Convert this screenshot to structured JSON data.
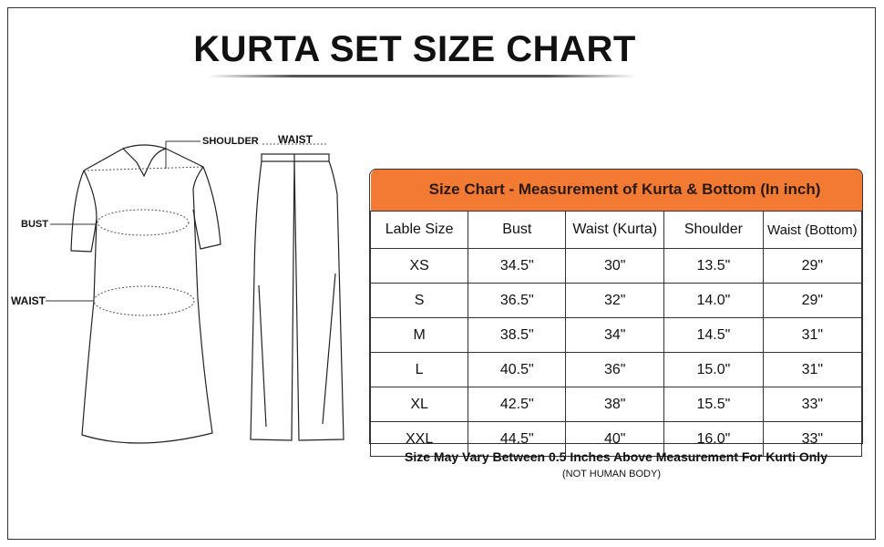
{
  "title": "KURTA SET SIZE CHART",
  "diagram": {
    "kurta_labels": {
      "shoulder": "SHOULDER",
      "bust": "BUST",
      "waist": "WAIST"
    },
    "bottom_labels": {
      "waist": "WAIST"
    }
  },
  "table": {
    "caption": "Size Chart - Measurement of  Kurta & Bottom  (In inch)",
    "header_color": "#f27a33",
    "columns": [
      "Lable Size",
      "Bust",
      "Waist (Kurta)",
      "Shoulder",
      "Waist (Bottom)"
    ],
    "rows": [
      [
        "XS",
        "34.5\"",
        "30\"",
        "13.5\"",
        "29\""
      ],
      [
        "S",
        "36.5\"",
        "32\"",
        "14.0\"",
        "29\""
      ],
      [
        "M",
        "38.5\"",
        "34\"",
        "14.5\"",
        "31\""
      ],
      [
        "L",
        "40.5\"",
        "36\"",
        "15.0\"",
        "31\""
      ],
      [
        "XL",
        "42.5\"",
        "38\"",
        "15.5\"",
        "33\""
      ],
      [
        "XXL",
        "44.5\"",
        "40\"",
        "16.0\"",
        "33\""
      ]
    ]
  },
  "notes": {
    "primary": "Size May Vary Between 0.5 Inches Above Measurement For Kurti Only",
    "secondary": "(NOT HUMAN BODY)"
  }
}
